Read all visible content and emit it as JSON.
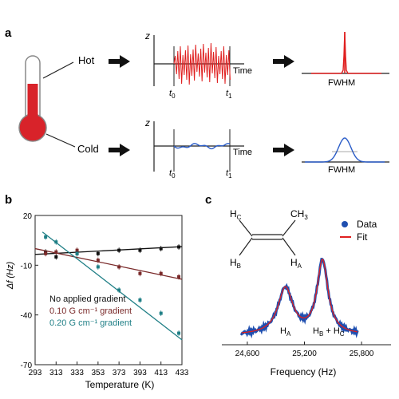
{
  "panel_a": {
    "label": "a",
    "hot_label": "Hot",
    "cold_label": "Cold",
    "z_label": "z",
    "time_label": "Time",
    "t0_label": "t",
    "t0_sub": "0",
    "t1_label": "t",
    "t1_sub": "1",
    "fwhm_label": "FWHM",
    "hot_color": "#e02020",
    "cold_color": "#2a5cc8"
  },
  "panel_b": {
    "label": "b",
    "legend": [
      {
        "text": "No applied gradient",
        "color": "#111111"
      },
      {
        "text": "0.10 G cm⁻¹ gradient",
        "color": "#7a2a2a"
      },
      {
        "text": "0.20 G cm⁻¹ gradient",
        "color": "#1f7f86"
      }
    ]
  },
  "panel_c": {
    "label": "c",
    "legend_data": "Data",
    "legend_fit": "Fit",
    "data_color": "#1f4fb0",
    "fit_color": "#e02020",
    "molecule": {
      "hc": "H",
      "hc_sub": "C",
      "ch3": "CH",
      "ch3_sub": "3",
      "hb": "H",
      "hb_sub": "B",
      "ha": "H",
      "ha_sub": "A"
    },
    "peak_a_label": "H",
    "peak_a_sub": "A",
    "peak_bc_label": "H",
    "peak_bc_sub1": "B",
    "peak_bc_plus": " + H",
    "peak_bc_sub2": "C"
  },
  "chart_data": [
    {
      "type": "scatter",
      "xlabel": "Temperature (K)",
      "ylabel": "Δf (Hz)",
      "xlim": [
        293,
        433
      ],
      "ylim": [
        -70,
        20
      ],
      "xticks": [
        293,
        313,
        333,
        353,
        373,
        393,
        413,
        433
      ],
      "yticks": [
        20,
        -10,
        -40,
        -70
      ],
      "series": [
        {
          "name": "No applied gradient",
          "color": "#111111",
          "x": [
            303,
            313,
            333,
            353,
            373,
            393,
            413,
            430
          ],
          "y": [
            -2,
            -5,
            -3,
            -3,
            -1,
            -1,
            0,
            1
          ],
          "fit": [
            [
              293,
              -3.5
            ],
            [
              433,
              1.2
            ]
          ]
        },
        {
          "name": "0.10 G cm⁻¹ gradient",
          "color": "#7a2a2a",
          "x": [
            303,
            313,
            333,
            353,
            373,
            393,
            413,
            430
          ],
          "y": [
            -3,
            -2,
            -1,
            -7,
            -11,
            -15,
            -15,
            -17
          ],
          "fit": [
            [
              293,
              0
            ],
            [
              433,
              -18.5
            ]
          ]
        },
        {
          "name": "0.20 G cm⁻¹ gradient",
          "color": "#1f7f86",
          "x": [
            303,
            313,
            333,
            353,
            373,
            393,
            413,
            430
          ],
          "y": [
            7,
            4,
            -3,
            -11,
            -25,
            -31,
            -39,
            -51
          ],
          "fit": [
            [
              300,
              10
            ],
            [
              433,
              -55
            ]
          ]
        }
      ]
    },
    {
      "type": "line",
      "xlabel": "Frequency (Hz)",
      "xlim": [
        24500,
        25900
      ],
      "xticks": [
        24600,
        25200,
        25800
      ],
      "xtick_labels": [
        "24,600",
        "25,200",
        "25,800"
      ],
      "series": [
        {
          "name": "Data",
          "color": "#1f4fb0"
        },
        {
          "name": "Fit",
          "color": "#e02020"
        }
      ],
      "peaks": [
        {
          "label": "H_A",
          "x": 25000
        },
        {
          "label": "H_B + H_C",
          "x": 25390
        }
      ]
    }
  ]
}
